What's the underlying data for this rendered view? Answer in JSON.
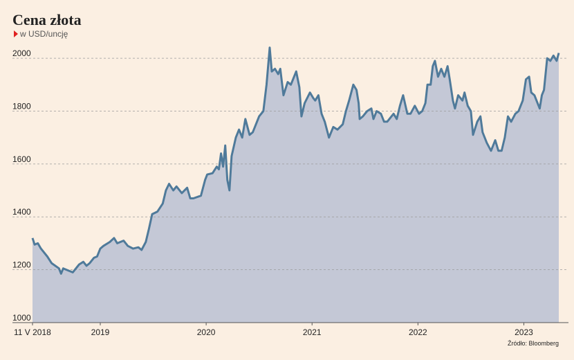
{
  "chart_data": {
    "type": "area",
    "title": "Cena złota",
    "subtitle": "w USD/uncję",
    "source": "Źródło: Bloomberg",
    "line_color": "#4f7a9a",
    "fill_color": "#c4c8d6",
    "grid": true,
    "x": [
      2018.36,
      2018.38,
      2018.41,
      2018.44,
      2018.5,
      2018.54,
      2018.61,
      2018.63,
      2018.65,
      2018.71,
      2018.74,
      2018.8,
      2018.84,
      2018.87,
      2018.9,
      2018.94,
      2018.97,
      2019.0,
      2019.03,
      2019.09,
      2019.13,
      2019.16,
      2019.22,
      2019.26,
      2019.31,
      2019.36,
      2019.39,
      2019.43,
      2019.46,
      2019.49,
      2019.54,
      2019.59,
      2019.62,
      2019.65,
      2019.69,
      2019.72,
      2019.77,
      2019.82,
      2019.85,
      2019.88,
      2019.95,
      2019.99,
      2020.01,
      2020.06,
      2020.1,
      2020.12,
      2020.14,
      2020.16,
      2020.18,
      2020.2,
      2020.22,
      2020.24,
      2020.28,
      2020.31,
      2020.34,
      2020.37,
      2020.41,
      2020.44,
      2020.47,
      2020.5,
      2020.54,
      2020.57,
      2020.6,
      2020.62,
      2020.65,
      2020.68,
      2020.7,
      2020.73,
      2020.77,
      2020.8,
      2020.85,
      2020.88,
      2020.9,
      2020.93,
      2020.98,
      2021.01,
      2021.03,
      2021.06,
      2021.09,
      2021.12,
      2021.16,
      2021.2,
      2021.24,
      2021.29,
      2021.32,
      2021.35,
      2021.39,
      2021.42,
      2021.44,
      2021.45,
      2021.48,
      2021.52,
      2021.56,
      2021.58,
      2021.61,
      2021.65,
      2021.68,
      2021.71,
      2021.77,
      2021.8,
      2021.83,
      2021.86,
      2021.9,
      2021.93,
      2021.97,
      2022.01,
      2022.04,
      2022.07,
      2022.09,
      2022.12,
      2022.14,
      2022.16,
      2022.19,
      2022.22,
      2022.25,
      2022.28,
      2022.3,
      2022.33,
      2022.35,
      2022.38,
      2022.42,
      2022.44,
      2022.47,
      2022.5,
      2022.52,
      2022.56,
      2022.59,
      2022.61,
      2022.65,
      2022.69,
      2022.73,
      2022.76,
      2022.79,
      2022.82,
      2022.85,
      2022.88,
      2022.92,
      2022.95,
      2022.99,
      2023.02,
      2023.05,
      2023.07,
      2023.1,
      2023.12,
      2023.15,
      2023.17,
      2023.19,
      2023.22,
      2023.25,
      2023.28,
      2023.31,
      2023.33
    ],
    "values": [
      1320,
      1295,
      1300,
      1280,
      1250,
      1225,
      1205,
      1185,
      1205,
      1195,
      1190,
      1220,
      1230,
      1215,
      1225,
      1245,
      1250,
      1280,
      1290,
      1305,
      1320,
      1300,
      1310,
      1290,
      1280,
      1285,
      1275,
      1305,
      1355,
      1410,
      1420,
      1450,
      1500,
      1525,
      1500,
      1515,
      1490,
      1510,
      1470,
      1470,
      1480,
      1540,
      1560,
      1565,
      1590,
      1580,
      1640,
      1590,
      1670,
      1540,
      1500,
      1630,
      1700,
      1730,
      1700,
      1770,
      1710,
      1720,
      1750,
      1780,
      1800,
      1900,
      2040,
      1950,
      1960,
      1940,
      1960,
      1860,
      1910,
      1900,
      1950,
      1890,
      1780,
      1830,
      1870,
      1850,
      1840,
      1860,
      1790,
      1760,
      1700,
      1740,
      1730,
      1750,
      1800,
      1840,
      1900,
      1880,
      1830,
      1770,
      1780,
      1800,
      1810,
      1770,
      1800,
      1790,
      1760,
      1760,
      1790,
      1770,
      1820,
      1860,
      1790,
      1790,
      1820,
      1790,
      1800,
      1830,
      1900,
      1900,
      1970,
      1990,
      1930,
      1960,
      1930,
      1970,
      1920,
      1840,
      1810,
      1860,
      1840,
      1870,
      1820,
      1800,
      1710,
      1760,
      1780,
      1720,
      1680,
      1650,
      1690,
      1650,
      1650,
      1700,
      1780,
      1760,
      1790,
      1800,
      1840,
      1920,
      1930,
      1870,
      1860,
      1840,
      1810,
      1860,
      1880,
      2000,
      1990,
      2010,
      1990,
      2020
    ],
    "xlim": [
      2018.36,
      2023.33
    ],
    "xticks": [
      {
        "value": 2018.36,
        "label": "11 V 2018"
      },
      2019,
      2020,
      2021,
      2022,
      2023
    ],
    "ylim": [
      1000,
      2050
    ],
    "yticks": [
      1000,
      1200,
      1400,
      1600,
      1800,
      2000
    ]
  }
}
